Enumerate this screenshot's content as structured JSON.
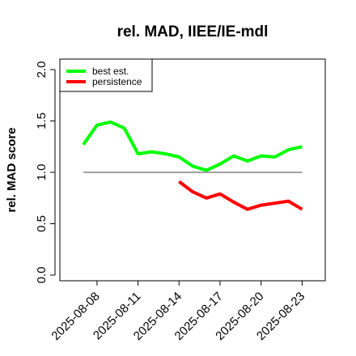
{
  "chart_data": {
    "type": "line",
    "title": "rel. MAD, IIEE/IE-mdl",
    "xlabel": "",
    "ylabel": "rel. MAD score",
    "ylim": [
      0,
      2
    ],
    "yticks": [
      "0.0",
      "0.5",
      "1.0",
      "1.5",
      "2.0"
    ],
    "xticks": [
      "2025-08-08",
      "2025-08-11",
      "2025-08-14",
      "2025-08-17",
      "2025-08-20",
      "2025-08-23"
    ],
    "x": [
      "2025-08-07",
      "2025-08-08",
      "2025-08-09",
      "2025-08-10",
      "2025-08-11",
      "2025-08-12",
      "2025-08-13",
      "2025-08-14",
      "2025-08-15",
      "2025-08-16",
      "2025-08-17",
      "2025-08-18",
      "2025-08-19",
      "2025-08-20",
      "2025-08-21",
      "2025-08-22",
      "2025-08-23"
    ],
    "reference_line": 1.0,
    "reference_color": "#808080",
    "legend_position": "top-left",
    "series": [
      {
        "name": "best est.",
        "color": "#00ff00",
        "values": [
          1.27,
          1.46,
          1.49,
          1.43,
          1.18,
          1.2,
          1.18,
          1.15,
          1.06,
          1.02,
          1.08,
          1.16,
          1.11,
          1.16,
          1.15,
          1.22,
          1.25
        ]
      },
      {
        "name": "persistence",
        "color": "#ff0000",
        "values": [
          null,
          null,
          null,
          null,
          null,
          null,
          null,
          0.91,
          0.81,
          0.75,
          0.79,
          0.71,
          0.64,
          0.68,
          0.7,
          0.72,
          0.64
        ]
      }
    ]
  }
}
